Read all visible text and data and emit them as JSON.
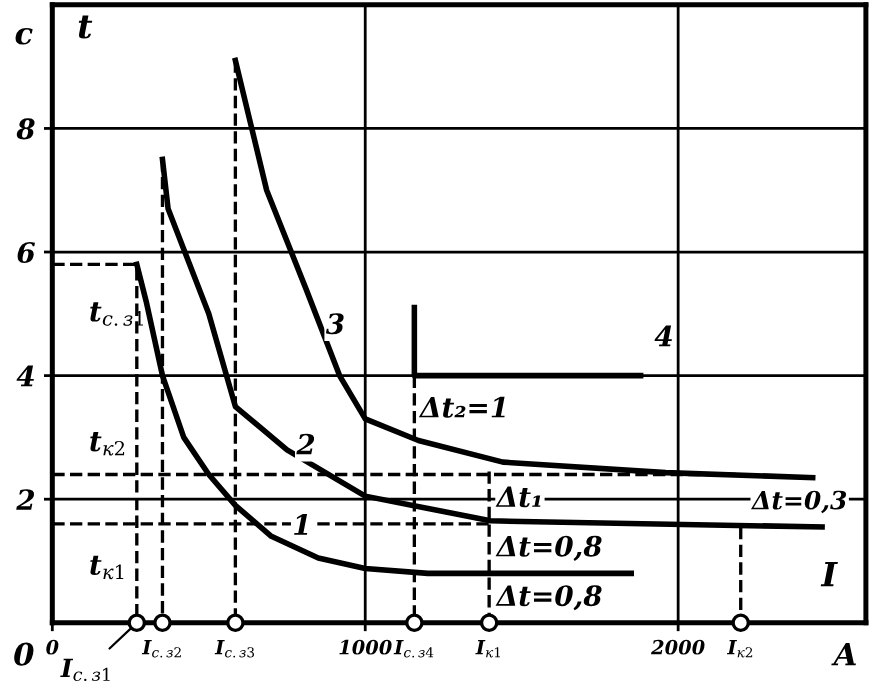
{
  "chart_data": {
    "type": "line",
    "ylabel": "t",
    "xlabel": "I",
    "xlim": [
      0,
      2600
    ],
    "ylim": [
      0,
      10
    ],
    "xticks": [
      0,
      {
        "value": 270,
        "label": null
      },
      {
        "value": 352,
        "label": "I$_{с.з2}$"
      },
      {
        "value": 585,
        "label": "I$_{с.з3}$"
      },
      1000,
      {
        "value": 1157,
        "label": "I$_{с.з4}$"
      },
      {
        "value": 1396,
        "label": "I$_{к1}$"
      },
      2000,
      {
        "value": 2200,
        "label": "I$_{к2}$"
      }
    ],
    "yticks": [
      2,
      4,
      6,
      8
    ],
    "grid": "y",
    "ref_lines": [
      {
        "axis": "x",
        "value": 1000,
        "color": "#000000",
        "line_style": "solid"
      },
      {
        "axis": "x",
        "value": 2000,
        "color": "#000000",
        "line_style": "solid"
      }
    ],
    "series": [
      {
        "color": "#000000",
        "x": [
          270,
          300,
          352,
          420,
          500,
          585,
          700,
          850,
          1000,
          1200,
          1400,
          1850
        ],
        "values": [
          5.8,
          5.2,
          4.0,
          3.0,
          2.4,
          1.9,
          1.4,
          1.05,
          0.88,
          0.8,
          0.8,
          0.8
        ]
      },
      {
        "color": "#000000",
        "x": [
          352,
          370,
          500,
          585,
          750,
          1000,
          1250,
          1400,
          2460
        ],
        "values": [
          7.5,
          6.7,
          5.0,
          3.5,
          2.8,
          2.05,
          1.8,
          1.65,
          1.55
        ]
      },
      {
        "color": "#000000",
        "x": [
          585,
          685,
          811,
          918,
          1000,
          1170,
          1440,
          1960,
          2430
        ],
        "values": [
          9.1,
          7.0,
          5.4,
          4.0,
          3.3,
          2.95,
          2.6,
          2.43,
          2.35
        ]
      },
      {
        "color": "#000000",
        "x": [
          1157,
          1157,
          1880
        ],
        "values": [
          5.1,
          4.0,
          4.0
        ]
      },
      {
        "color": "#000000",
        "line_style": "dashed",
        "x": [
          0,
          270,
          270
        ],
        "values": [
          5.8,
          5.8,
          0
        ]
      },
      {
        "color": "#000000",
        "line_style": "dashed",
        "x": [
          352,
          352
        ],
        "values": [
          7.5,
          0
        ]
      },
      {
        "color": "#000000",
        "line_style": "dashed",
        "x": [
          585,
          585
        ],
        "values": [
          9.1,
          0
        ]
      },
      {
        "color": "#000000",
        "line_style": "dashed",
        "x": [
          1157,
          1157
        ],
        "values": [
          4.0,
          0
        ]
      },
      {
        "color": "#000000",
        "line_style": "dashed",
        "x": [
          1396,
          1396
        ],
        "values": [
          2.45,
          0
        ]
      },
      {
        "color": "#000000",
        "line_style": "dashed",
        "x": [
          2200,
          2200
        ],
        "values": [
          1.55,
          0
        ]
      },
      {
        "color": "#000000",
        "line_style": "dashed",
        "x": [
          0,
          2200
        ],
        "values": [
          2.4,
          2.4
        ]
      },
      {
        "color": "#000000",
        "line_style": "dashed",
        "x": [
          0,
          1396
        ],
        "values": [
          1.6,
          1.6
        ]
      },
      {
        "type": "scatter",
        "color": "#000000",
        "marker": "circle",
        "x": [
          270,
          352,
          585,
          1157,
          1396,
          2200
        ],
        "values": [
          0,
          0,
          0,
          0,
          0,
          0
        ]
      }
    ],
    "annotations": [
      "с",
      "A",
      "0",
      "4",
      "t$_{с.з1}$",
      "t$_{к2}$",
      "t$_{к1}$",
      "Δt=0,3",
      {
        "text": "I$_{с.з1}$",
        "x": 270,
        "y": 0
      },
      {
        "text": "1",
        "x": 767,
        "y": 1.55
      },
      {
        "text": "2",
        "x": 780,
        "y": 2.85
      },
      {
        "text": "3",
        "x": 874,
        "y": 4.8
      },
      {
        "text": "Δt₂=1",
        "x": 1175,
        "y": 3.45
      },
      {
        "text": "Δt₁",
        "x": 1420,
        "y": 2.0
      },
      {
        "text": "Δt=0,8",
        "x": 1420,
        "y": 1.2
      },
      {
        "text": "Δt=0,8",
        "x": 1420,
        "y": 0.4
      }
    ]
  }
}
